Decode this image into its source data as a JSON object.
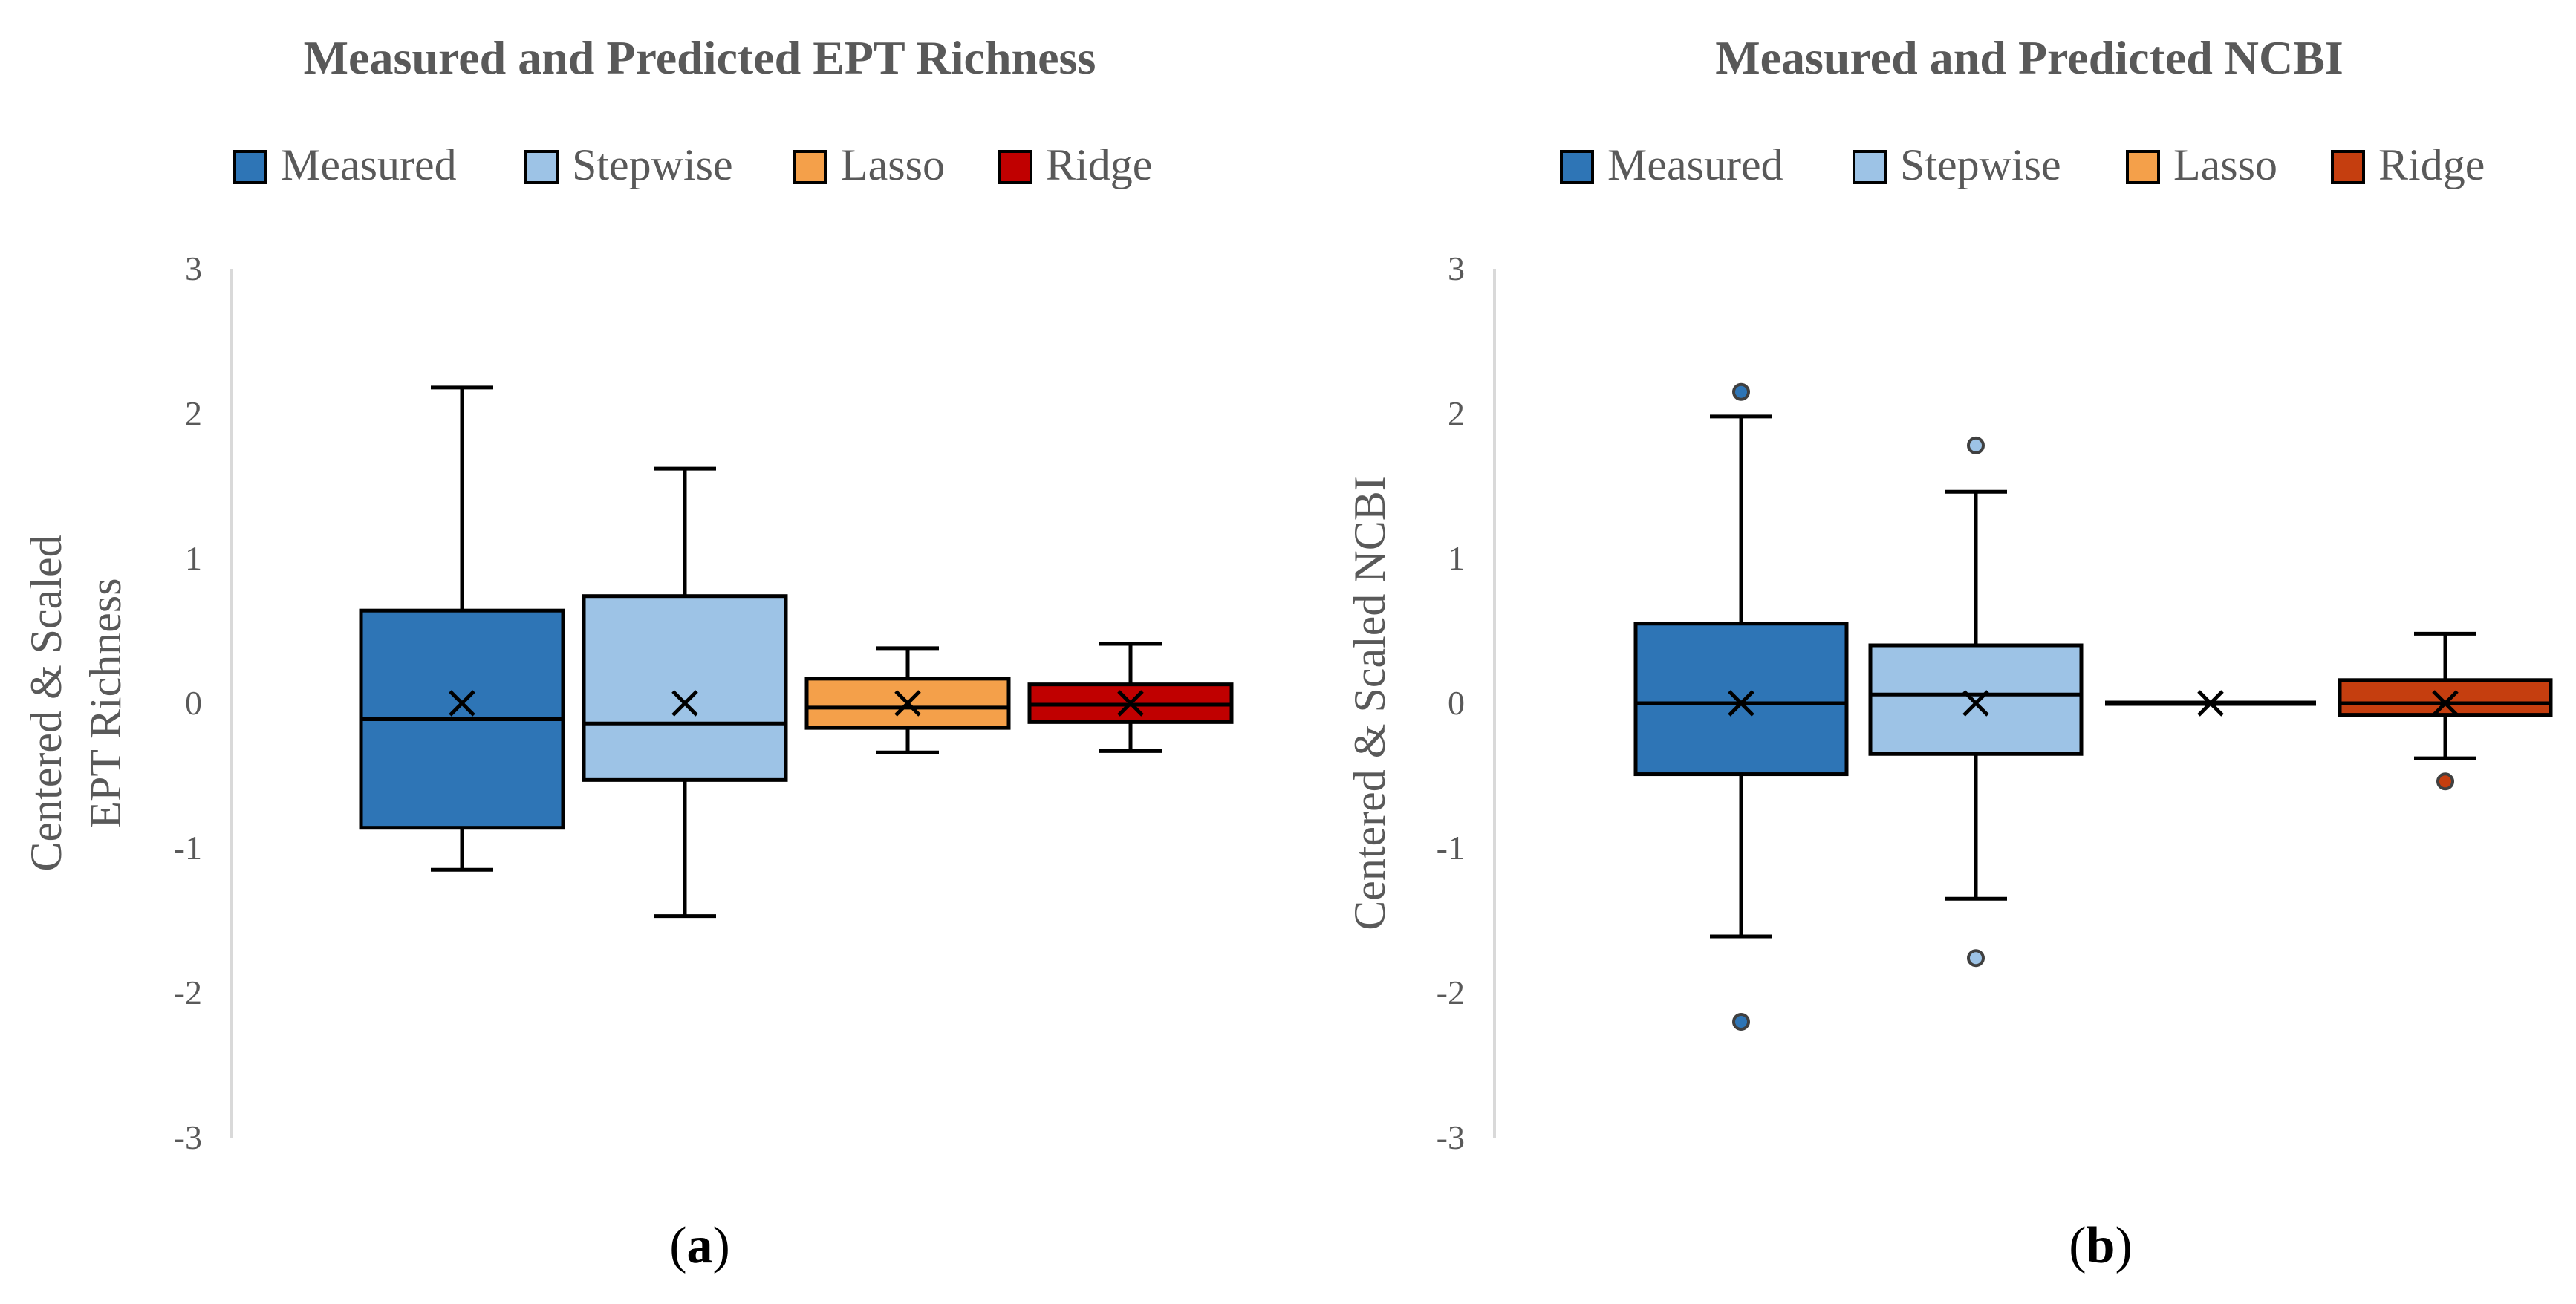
{
  "figure_captions": [
    {
      "open": "(",
      "letter": "a",
      "close": ")"
    },
    {
      "open": "(",
      "letter": "b",
      "close": ")"
    }
  ],
  "chart_data": [
    {
      "type": "boxplot",
      "title": "Measured and Predicted EPT Richness",
      "ylabel_lines": [
        "Centered & Scaled",
        "EPT Richness"
      ],
      "ylim": [
        -3,
        3
      ],
      "yticks": [
        3,
        2,
        1,
        0,
        -1,
        -2,
        -3
      ],
      "legend_position": "top",
      "series": [
        {
          "name": "Measured",
          "color": "#2e75b6",
          "whisker_low": -1.15,
          "q1": -0.86,
          "median": -0.11,
          "q3": 0.64,
          "whisker_high": 2.18,
          "mean": 0.0,
          "outliers": []
        },
        {
          "name": "Stepwise",
          "color": "#9dc3e6",
          "whisker_low": -1.47,
          "q1": -0.53,
          "median": -0.14,
          "q3": 0.74,
          "whisker_high": 1.62,
          "mean": 0.0,
          "outliers": []
        },
        {
          "name": "Lasso",
          "color": "#f4a04a",
          "whisker_low": -0.34,
          "q1": -0.17,
          "median": -0.03,
          "q3": 0.17,
          "whisker_high": 0.38,
          "mean": 0.0,
          "outliers": []
        },
        {
          "name": "Ridge",
          "color": "#c00000",
          "whisker_low": -0.33,
          "q1": -0.13,
          "median": -0.01,
          "q3": 0.13,
          "whisker_high": 0.41,
          "mean": 0.0,
          "outliers": []
        }
      ]
    },
    {
      "type": "boxplot",
      "title": "Measured and Predicted NCBI",
      "ylabel_lines": [
        "Centered & Scaled NCBI"
      ],
      "ylim": [
        -3,
        3
      ],
      "yticks": [
        3,
        2,
        1,
        0,
        -1,
        -2,
        -3
      ],
      "legend_position": "top",
      "series": [
        {
          "name": "Measured",
          "color": "#2e75b6",
          "whisker_low": -1.61,
          "q1": -0.49,
          "median": 0.0,
          "q3": 0.55,
          "whisker_high": 1.98,
          "mean": 0.0,
          "outliers": [
            2.15,
            -2.2
          ]
        },
        {
          "name": "Stepwise",
          "color": "#9dc3e6",
          "whisker_low": -1.35,
          "q1": -0.35,
          "median": 0.06,
          "q3": 0.4,
          "whisker_high": 1.46,
          "mean": 0.0,
          "outliers": [
            1.78,
            -1.76
          ]
        },
        {
          "name": "Lasso",
          "color": "#f4a04a",
          "whisker_low": 0.0,
          "q1": 0.0,
          "median": 0.0,
          "q3": 0.0,
          "whisker_high": 0.0,
          "mean": 0.0,
          "outliers": []
        },
        {
          "name": "Ridge",
          "color": "#c53e0f",
          "whisker_low": -0.38,
          "q1": -0.08,
          "median": 0.0,
          "q3": 0.16,
          "whisker_high": 0.48,
          "mean": 0.0,
          "outliers": [
            -0.54
          ]
        }
      ]
    }
  ]
}
